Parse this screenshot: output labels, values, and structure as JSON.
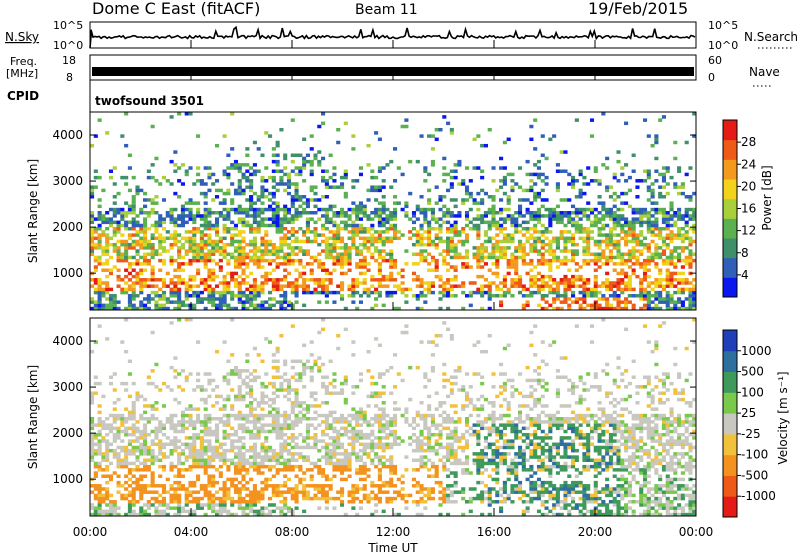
{
  "header": {
    "station": "Dome C East (fitACF)",
    "beam": "Beam 11",
    "date": "19/Feb/2015"
  },
  "panels": {
    "nsky_label": "N.Sky",
    "nsky_ticks": [
      "10^5",
      "10^0"
    ],
    "nsearch_label": "N.Search",
    "nsearch_ticks": [
      "10^5",
      "10^0"
    ],
    "freq_label": "Freq.",
    "freq_unit": "[MHz]",
    "freq_ticks": [
      "18",
      "8"
    ],
    "nave_label": "Nave",
    "nave_ticks": [
      "60",
      "0"
    ],
    "cpid_label": "CPID",
    "cpid_value": "twofsound 3501"
  },
  "chart_data": [
    {
      "type": "heatmap",
      "name": "power",
      "ylabel": "Slant Range [km]",
      "ylim": [
        200,
        4500
      ],
      "yticks": [
        1000,
        2000,
        3000,
        4000
      ],
      "xlim": [
        0,
        24
      ],
      "colorbar_label": "Power [dB]",
      "colorbar_ticks": [
        "4",
        "8",
        "12",
        "16",
        "20",
        "24",
        "28"
      ],
      "colorscale": [
        "#0a17ee",
        "#2f5fb9",
        "#3f8f6a",
        "#5bb04f",
        "#a9cf3b",
        "#f2d21b",
        "#f39a1e",
        "#ee5a17",
        "#e51c16"
      ]
    },
    {
      "type": "heatmap",
      "name": "velocity",
      "ylabel": "Slant Range [km]",
      "ylim": [
        200,
        4500
      ],
      "yticks": [
        1000,
        2000,
        3000,
        4000
      ],
      "xlim": [
        0,
        24
      ],
      "xticks": [
        "00:00",
        "04:00",
        "08:00",
        "12:00",
        "16:00",
        "20:00",
        "00:00"
      ],
      "xlabel": "Time UT",
      "colorbar_label": "Velocity [m s⁻¹]",
      "colorbar_ticks": [
        "1000",
        "500",
        "100",
        "25",
        "-25",
        "-100",
        "-500",
        "-1000"
      ],
      "colorscale": [
        "#e51c16",
        "#ee5a17",
        "#f3921f",
        "#f2c13c",
        "#c8c8c0",
        "#79c94a",
        "#3e9a5a",
        "#2f6fa0",
        "#1f3fb9"
      ]
    }
  ]
}
